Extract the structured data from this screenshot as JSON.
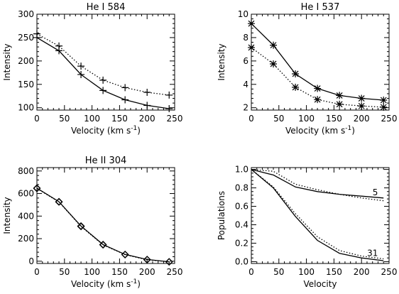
{
  "chart_data": [
    {
      "type": "line",
      "title": "He I 584",
      "xlabel": "Velocity (km s",
      "xlabel_sup": "-1",
      "ylabel": "Intensity",
      "xlim": [
        0,
        250
      ],
      "ylim": [
        95,
        300
      ],
      "xticks": [
        0,
        50,
        100,
        150,
        200,
        250
      ],
      "yticks": [
        100,
        150,
        200,
        250,
        300
      ],
      "series": [
        {
          "style": "solid",
          "marker": "plus",
          "x": [
            0,
            40,
            80,
            120,
            160,
            200,
            240
          ],
          "y": [
            250,
            222,
            171,
            137,
            117,
            105,
            98
          ]
        },
        {
          "style": "dotted",
          "marker": "plus",
          "x": [
            0,
            40,
            80,
            120,
            160,
            200,
            240
          ],
          "y": [
            258,
            232,
            189,
            159,
            143,
            133,
            127
          ]
        }
      ]
    },
    {
      "type": "line",
      "title": "He I 537",
      "xlabel": "Velocity (km s",
      "xlabel_sup": "-1",
      "ylabel": "Intensity",
      "xlim": [
        0,
        250
      ],
      "ylim": [
        1.8,
        10
      ],
      "xticks": [
        0,
        50,
        100,
        150,
        200,
        250
      ],
      "yticks": [
        2,
        4,
        6,
        8,
        10
      ],
      "series": [
        {
          "style": "solid",
          "marker": "asterisk",
          "x": [
            0,
            40,
            80,
            120,
            160,
            200,
            240
          ],
          "y": [
            9.2,
            7.35,
            4.9,
            3.65,
            3.05,
            2.8,
            2.65
          ]
        },
        {
          "style": "dotted",
          "marker": "asterisk",
          "x": [
            0,
            40,
            80,
            120,
            160,
            200,
            240
          ],
          "y": [
            7.15,
            5.75,
            3.75,
            2.7,
            2.3,
            2.15,
            2.05
          ]
        }
      ]
    },
    {
      "type": "line",
      "title": "He II 304",
      "xlabel": "Velocity (km s",
      "xlabel_sup": "-1",
      "ylabel": "Intensity",
      "xlim": [
        0,
        250
      ],
      "ylim": [
        -20,
        830
      ],
      "xticks": [
        0,
        50,
        100,
        150,
        200,
        250
      ],
      "yticks": [
        0,
        200,
        400,
        600,
        800
      ],
      "series": [
        {
          "style": "solid",
          "marker": "diamond",
          "x": [
            0,
            40,
            80,
            120,
            160,
            200,
            240
          ],
          "y": [
            648,
            528,
            312,
            148,
            60,
            15,
            -5
          ]
        },
        {
          "style": "dotted",
          "marker": "diamond",
          "x": [
            0,
            40,
            80,
            120,
            160,
            200,
            240
          ],
          "y": [
            645,
            525,
            308,
            145,
            58,
            13,
            -6
          ]
        }
      ]
    },
    {
      "type": "line",
      "title": "",
      "xlabel": "Velocity",
      "xlabel_sup": "",
      "ylabel": "Populations",
      "xlim": [
        0,
        250
      ],
      "ylim": [
        -0.02,
        1.02
      ],
      "xticks": [
        0,
        50,
        100,
        150,
        200,
        250
      ],
      "yticks": [
        0.0,
        0.2,
        0.4,
        0.6,
        0.8,
        1.0
      ],
      "ytick_labels": [
        "0.0",
        "0.2",
        "0.4",
        "0.6",
        "0.8",
        "1.0"
      ],
      "annotations": [
        {
          "text": "5",
          "x": 225,
          "y": 0.72
        },
        {
          "text": "31",
          "x": 220,
          "y": 0.06
        }
      ],
      "series": [
        {
          "style": "solid",
          "marker": "none",
          "x": [
            0,
            40,
            80,
            120,
            160,
            200,
            240
          ],
          "y": [
            1.0,
            0.94,
            0.81,
            0.76,
            0.73,
            0.71,
            0.69
          ]
        },
        {
          "style": "dotted",
          "marker": "none",
          "x": [
            0,
            40,
            80,
            120,
            160,
            200,
            240
          ],
          "y": [
            1.0,
            0.98,
            0.84,
            0.78,
            0.73,
            0.69,
            0.66
          ]
        },
        {
          "style": "solid",
          "marker": "none",
          "x": [
            0,
            40,
            80,
            120,
            160,
            200,
            240
          ],
          "y": [
            1.0,
            0.8,
            0.49,
            0.23,
            0.09,
            0.04,
            0.01
          ]
        },
        {
          "style": "dotted",
          "marker": "none",
          "x": [
            0,
            40,
            80,
            120,
            160,
            200,
            240
          ],
          "y": [
            1.0,
            0.81,
            0.52,
            0.27,
            0.12,
            0.06,
            0.03
          ]
        }
      ]
    }
  ]
}
